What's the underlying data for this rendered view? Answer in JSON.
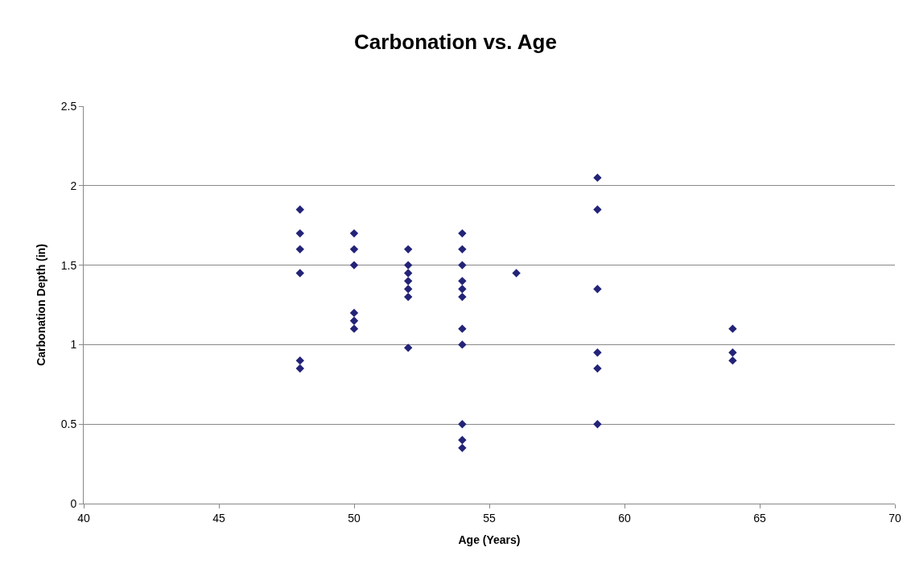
{
  "chart_data": {
    "type": "scatter",
    "title": "Carbonation vs. Age",
    "xlabel": "Age (Years)",
    "ylabel": "Carbonation Depth (in)",
    "x": [
      48,
      48,
      48,
      48,
      48,
      48,
      50,
      50,
      50,
      50,
      50,
      50,
      52,
      52,
      52,
      52,
      52,
      52,
      52,
      54,
      54,
      54,
      54,
      54,
      54,
      54,
      54,
      54,
      54,
      54,
      56,
      59,
      59,
      59,
      59,
      59,
      59,
      64,
      64,
      64
    ],
    "values": [
      1.85,
      1.7,
      1.6,
      1.45,
      0.9,
      0.85,
      1.7,
      1.6,
      1.5,
      1.2,
      1.15,
      1.1,
      1.6,
      1.5,
      1.45,
      1.4,
      1.35,
      1.3,
      0.98,
      1.7,
      1.6,
      1.5,
      1.4,
      1.35,
      1.3,
      1.1,
      1.0,
      0.5,
      0.4,
      0.35,
      1.45,
      2.05,
      1.85,
      1.35,
      0.95,
      0.85,
      0.5,
      1.1,
      0.95,
      0.9
    ],
    "color": "#232378",
    "marker": "diamond",
    "xlim": [
      40,
      70
    ],
    "xticks": [
      40,
      45,
      50,
      55,
      60,
      65,
      70
    ],
    "ylim": [
      0,
      2.5
    ],
    "yticks": [
      0,
      0.5,
      1,
      1.5,
      2,
      2.5
    ],
    "grid": "y",
    "legend": false
  }
}
